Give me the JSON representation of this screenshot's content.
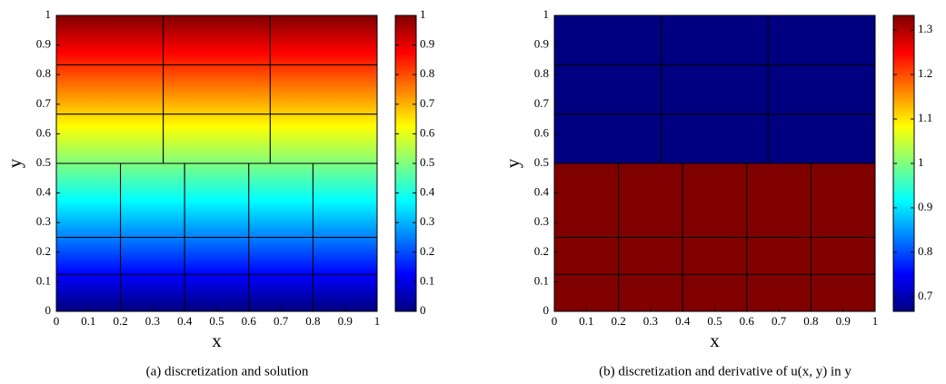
{
  "chart_data": [
    {
      "type": "mesh",
      "caption": "(a) discretization and solution",
      "xlabel": "x",
      "ylabel": "y",
      "xlim": [
        0,
        1
      ],
      "ylim": [
        0,
        1
      ],
      "xticks": [
        0,
        0.1,
        0.2,
        0.3,
        0.4,
        0.5,
        0.6,
        0.7,
        0.8,
        0.9,
        1
      ],
      "yticks": [
        0,
        0.1,
        0.2,
        0.3,
        0.4,
        0.5,
        0.6,
        0.7,
        0.8,
        0.9,
        1
      ],
      "colormap": "jet",
      "clim": [
        0,
        1
      ],
      "cticks": [
        0,
        0.1,
        0.2,
        0.3,
        0.4,
        0.5,
        0.6,
        0.7,
        0.8,
        0.9,
        1
      ],
      "blocks": [
        {
          "xedges": [
            0,
            0.3333,
            0.6667,
            1
          ],
          "yedges": [
            0.5,
            0.6667,
            0.8333,
            1
          ],
          "values": [
            0.5,
            1
          ]
        },
        {
          "xedges": [
            0,
            0.2,
            0.4,
            0.6,
            0.8,
            1
          ],
          "yedges": [
            0,
            0.125,
            0.25,
            0.5
          ],
          "values": [
            0,
            0.5
          ]
        }
      ]
    },
    {
      "type": "mesh",
      "caption": "(b) discretization and derivative of u(x, y) in y",
      "xlabel": "x",
      "ylabel": "y",
      "xlim": [
        0,
        1
      ],
      "ylim": [
        0,
        1
      ],
      "xticks": [
        0,
        0.1,
        0.2,
        0.3,
        0.4,
        0.5,
        0.6,
        0.7,
        0.8,
        0.9,
        1
      ],
      "yticks": [
        0,
        0.1,
        0.2,
        0.3,
        0.4,
        0.5,
        0.6,
        0.7,
        0.8,
        0.9,
        1
      ],
      "colormap": "jet",
      "clim": [
        0.667,
        1.333
      ],
      "cticks": [
        0.7,
        0.8,
        0.9,
        1,
        1.1,
        1.2,
        1.3
      ],
      "blocks": [
        {
          "xedges": [
            0,
            0.3333,
            0.6667,
            1
          ],
          "yedges": [
            0.5,
            0.6667,
            0.8333,
            1
          ],
          "values": [
            0.667,
            0.667
          ]
        },
        {
          "xedges": [
            0,
            0.2,
            0.4,
            0.6,
            0.8,
            1
          ],
          "yedges": [
            0,
            0.125,
            0.25,
            0.5
          ],
          "values": [
            1.333,
            1.333
          ]
        }
      ]
    }
  ]
}
